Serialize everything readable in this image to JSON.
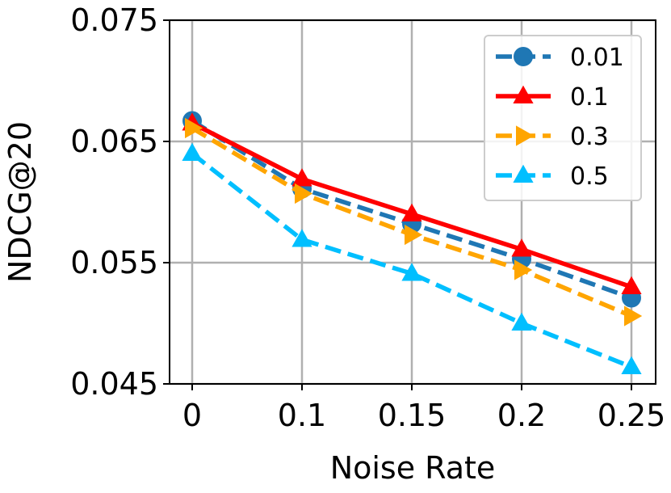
{
  "chart_data": {
    "type": "line",
    "xlabel": "Noise Rate",
    "ylabel": "NDCG@20",
    "categories": [
      "0",
      "0.1",
      "0.15",
      "0.2",
      "0.25"
    ],
    "yticks": [
      "0.045",
      "0.055",
      "0.065",
      "0.075"
    ],
    "ytick_values": [
      0.045,
      0.055,
      0.065,
      0.075
    ],
    "ylim": [
      0.045,
      0.075
    ],
    "grid": true,
    "legend_position": "top-right",
    "series": [
      {
        "name": "0.01",
        "values": [
          0.0667,
          0.0611,
          0.0582,
          0.0553,
          0.0521
        ],
        "color": "#1f77b4",
        "marker": "circle",
        "dash": true
      },
      {
        "name": "0.1",
        "values": [
          0.0665,
          0.0619,
          0.059,
          0.0561,
          0.053
        ],
        "color": "#ff0000",
        "marker": "triangle-up",
        "dash": false
      },
      {
        "name": "0.3",
        "values": [
          0.0661,
          0.0607,
          0.0573,
          0.0544,
          0.0506
        ],
        "color": "#ffa500",
        "marker": "triangle-right",
        "dash": true
      },
      {
        "name": "0.5",
        "values": [
          0.064,
          0.0569,
          0.0541,
          0.05,
          0.0464
        ],
        "color": "#00bfff",
        "marker": "triangle-up",
        "dash": true
      }
    ]
  }
}
